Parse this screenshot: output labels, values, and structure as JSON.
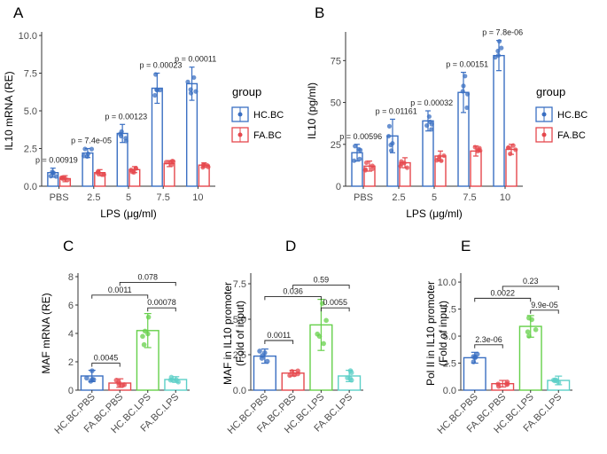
{
  "figure": {
    "colors": {
      "hc": "#3a6fc2",
      "fa": "#e5484d",
      "hc_lps": "#66d04a",
      "fa_lps": "#5ccfc7",
      "axis": "#333333",
      "tick_text": "#4d4d4d",
      "annot": "#222222"
    },
    "legend": {
      "title": "group",
      "entries": [
        "HC.BC",
        "FA.BC"
      ]
    }
  },
  "chart_data": [
    {
      "panel": "A",
      "type": "bar",
      "ylabel": "IL10 mRNA (RE)",
      "xlabel": "LPS (μg/ml)",
      "ylim": [
        0,
        10
      ],
      "yticks": [
        "0.0",
        "2.5",
        "5.0",
        "7.5",
        "10.0"
      ],
      "yticks_values": [
        0,
        2.5,
        5,
        7.5,
        10
      ],
      "categories": [
        "PBS",
        "2.5",
        "5",
        "7.5",
        "10"
      ],
      "series": [
        {
          "name": "HC.BC",
          "values": [
            0.9,
            2.2,
            3.5,
            6.5,
            6.8
          ],
          "err": [
            0.3,
            0.3,
            0.6,
            1.0,
            1.1
          ]
        },
        {
          "name": "FA.BC",
          "values": [
            0.5,
            0.9,
            1.1,
            1.5,
            1.4
          ],
          "err": [
            0.2,
            0.2,
            0.2,
            0.2,
            0.15
          ]
        }
      ],
      "pvalues": [
        "p = 0.00919",
        "p = 7.4e-05",
        "p = 0.00123",
        "p = 0.00023",
        "p = 0.00011"
      ]
    },
    {
      "panel": "B",
      "type": "bar",
      "ylabel": "IL10 (pg/ml)",
      "xlabel": "LPS (μg/ml)",
      "ylim": [
        0,
        90
      ],
      "yticks": [
        "0",
        "25",
        "50",
        "75"
      ],
      "yticks_values": [
        0,
        25,
        50,
        75
      ],
      "categories": [
        "PBS",
        "2.5",
        "5",
        "7.5",
        "10"
      ],
      "series": [
        {
          "name": "HC.BC",
          "values": [
            20,
            30,
            39,
            56,
            78
          ],
          "err": [
            5,
            10,
            6,
            12,
            9
          ]
        },
        {
          "name": "FA.BC",
          "values": [
            12,
            14,
            18,
            21,
            22
          ],
          "err": [
            3,
            3,
            3,
            3,
            3
          ]
        }
      ],
      "pvalues": [
        "p = 0.00596",
        "p = 0.01161",
        "p = 0.00032",
        "p = 0.00151",
        "p = 7.8e-06"
      ]
    },
    {
      "panel": "C",
      "type": "bar",
      "ylabel": "MAF mRNA (RE)",
      "ylim": [
        0,
        8
      ],
      "yticks": [
        "0",
        "2",
        "4",
        "6",
        "8"
      ],
      "yticks_values": [
        0,
        2,
        4,
        6,
        8
      ],
      "categories": [
        "HC.BC.PBS",
        "FA.BC.PBS",
        "HC.BC.LPS",
        "FA.BC.LPS"
      ],
      "values": [
        1.0,
        0.5,
        4.2,
        0.75
      ],
      "err": [
        0.4,
        0.3,
        1.2,
        0.2
      ],
      "brackets": [
        {
          "i": 0,
          "j": 1,
          "y": 1.9,
          "label": "0.0045"
        },
        {
          "i": 2,
          "j": 3,
          "y": 5.8,
          "label": "0.00078"
        },
        {
          "i": 0,
          "j": 2,
          "y": 6.7,
          "label": "0.0011"
        },
        {
          "i": 1,
          "j": 3,
          "y": 7.6,
          "label": "0.078"
        }
      ]
    },
    {
      "panel": "D",
      "type": "bar",
      "ylabel": "MAF in IL10 promoter\n(Fold of input)",
      "ylim": [
        0,
        8
      ],
      "yticks": [
        "0.0",
        "2.5",
        "5.0",
        "7.5"
      ],
      "yticks_values": [
        0,
        2.5,
        5,
        7.5
      ],
      "categories": [
        "HC.BC.PBS",
        "FA.BC.PBS",
        "HC.BC.LPS",
        "FA.BC.LPS"
      ],
      "values": [
        2.4,
        1.2,
        4.6,
        1.0
      ],
      "err": [
        0.5,
        0.2,
        1.8,
        0.4
      ],
      "brackets": [
        {
          "i": 0,
          "j": 1,
          "y": 3.5,
          "label": "0.0011"
        },
        {
          "i": 2,
          "j": 3,
          "y": 5.8,
          "label": "0.0055"
        },
        {
          "i": 0,
          "j": 2,
          "y": 6.6,
          "label": "0.036"
        },
        {
          "i": 1,
          "j": 3,
          "y": 7.4,
          "label": "0.59"
        }
      ]
    },
    {
      "panel": "E",
      "type": "bar",
      "ylabel": "Pol II in IL10 promoter\n(Fold of input)",
      "ylim": [
        0,
        10.5
      ],
      "yticks": [
        "0.0",
        "2.5",
        "5.0",
        "7.5",
        "10.0"
      ],
      "yticks_values": [
        0,
        2.5,
        5,
        7.5,
        10
      ],
      "categories": [
        "HC.BC.PBS",
        "FA.BC.PBS",
        "HC.BC.LPS",
        "FA.BC.LPS"
      ],
      "values": [
        3.0,
        0.6,
        5.9,
        0.9
      ],
      "err": [
        0.5,
        0.3,
        1.0,
        0.4
      ],
      "brackets": [
        {
          "i": 0,
          "j": 1,
          "y": 4.2,
          "label": "2.3e-06"
        },
        {
          "i": 2,
          "j": 3,
          "y": 7.4,
          "label": "9.9e-05"
        },
        {
          "i": 0,
          "j": 2,
          "y": 8.5,
          "label": "0.0022"
        },
        {
          "i": 1,
          "j": 3,
          "y": 9.6,
          "label": "0.23"
        }
      ]
    }
  ]
}
